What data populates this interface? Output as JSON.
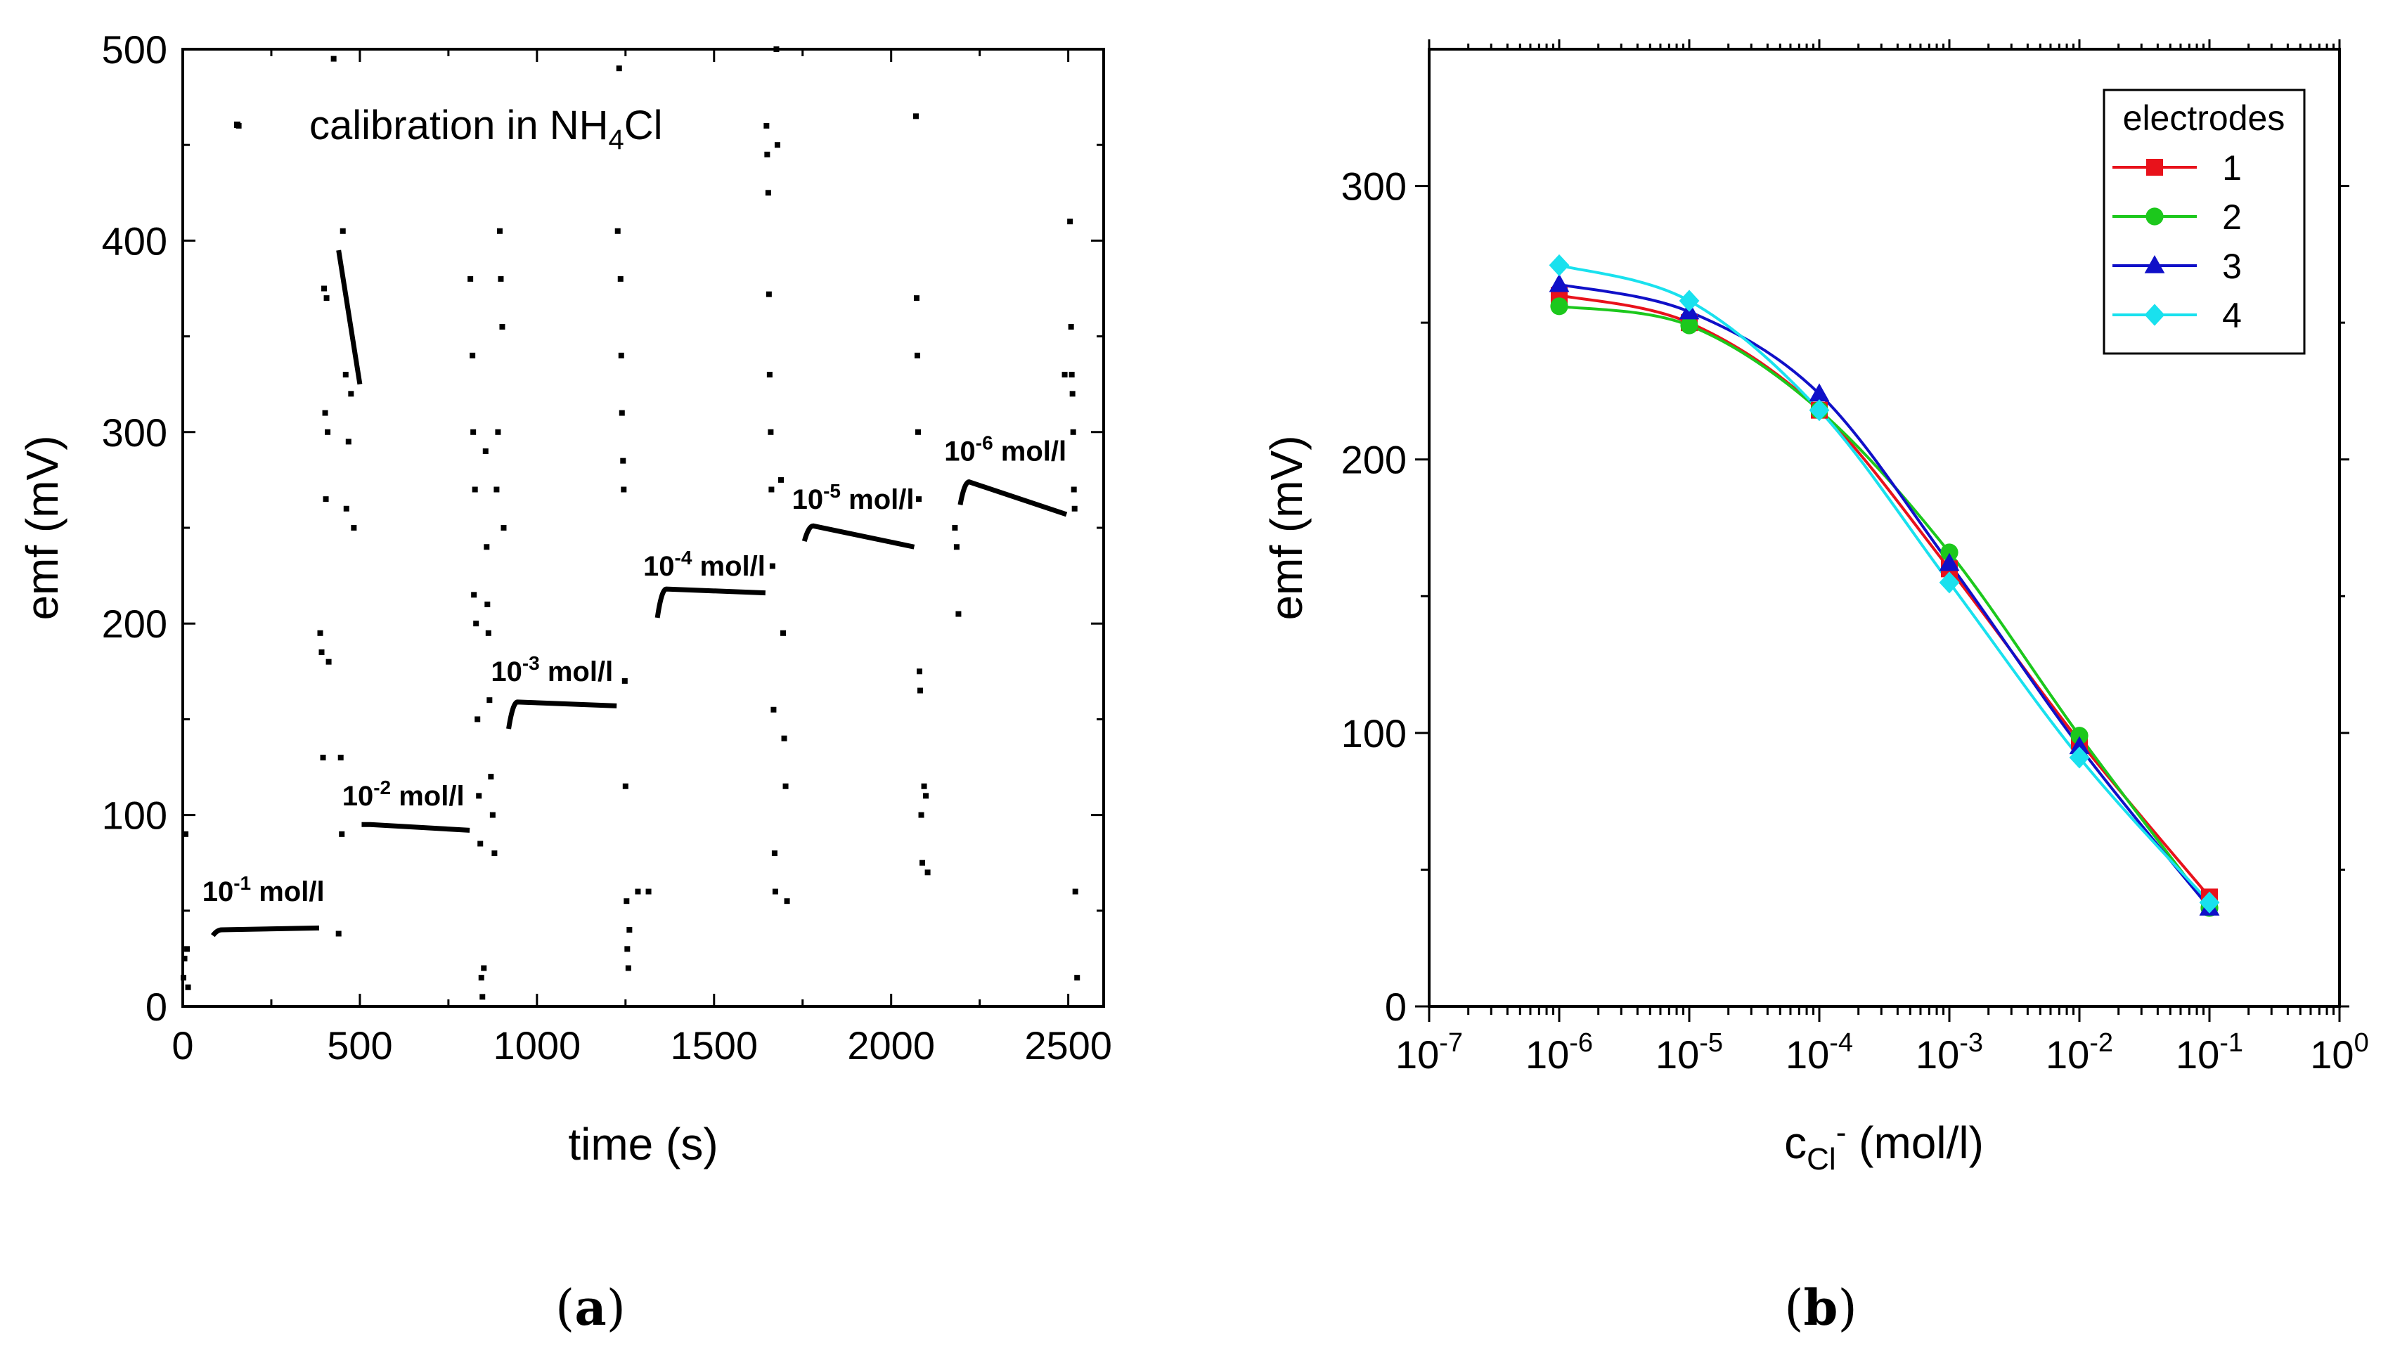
{
  "chart_data": [
    {
      "type": "scatter",
      "panel": "(a)",
      "panel_open": "(",
      "panel_letter": "a",
      "panel_close": ")",
      "xlabel": "time (s)",
      "ylabel": "emf (mV)",
      "xlim": [
        0,
        2600
      ],
      "ylim": [
        0,
        500
      ],
      "xticks": [
        "0",
        "500",
        "1000",
        "1500",
        "2000",
        "2500"
      ],
      "xtick_values": [
        0,
        500,
        1000,
        1500,
        2000,
        2500
      ],
      "yticks": [
        "0",
        "100",
        "200",
        "300",
        "400",
        "500"
      ],
      "ytick_values": [
        0,
        100,
        200,
        300,
        400,
        500
      ],
      "legend": {
        "prefix": "calibration in NH",
        "sub": "4",
        "suffix": "Cl"
      },
      "step_labels": [
        {
          "base": "10",
          "exp": "-1",
          "unit": " mol/l",
          "x": 55,
          "y": 55
        },
        {
          "base": "10",
          "exp": "-2",
          "unit": " mol/l",
          "x": 450,
          "y": 105
        },
        {
          "base": "10",
          "exp": "-3",
          "unit": " mol/l",
          "x": 870,
          "y": 170
        },
        {
          "base": "10",
          "exp": "-4",
          "unit": " mol/l",
          "x": 1300,
          "y": 225
        },
        {
          "base": "10",
          "exp": "-5",
          "unit": " mol/l",
          "x": 1720,
          "y": 260
        },
        {
          "base": "10",
          "exp": "-6",
          "unit": " mol/l",
          "x": 2150,
          "y": 285
        }
      ],
      "plateaus": [
        {
          "x_start": 85,
          "x_end": 385,
          "y_start": 37,
          "y_peak": 40,
          "y_end": 41
        },
        {
          "x_start": 505,
          "x_end": 810,
          "y_start": 95,
          "y_peak": 95,
          "y_end": 92
        },
        {
          "x_start": 920,
          "x_end": 1225,
          "y_start": 145,
          "y_peak": 159,
          "y_end": 157
        },
        {
          "x_start": 1340,
          "x_end": 1645,
          "y_start": 203,
          "y_peak": 218,
          "y_end": 216
        },
        {
          "x_start": 1755,
          "x_end": 2065,
          "y_start": 243,
          "y_peak": 251,
          "y_end": 240
        },
        {
          "x_start": 2195,
          "x_end": 2495,
          "y_start": 262,
          "y_peak": 274,
          "y_end": 257
        }
      ],
      "transient_segment": {
        "x_start": 440,
        "x_end": 500,
        "y_start": 395,
        "y_end": 325
      },
      "scattered_points": [
        [
          2,
          15
        ],
        [
          5,
          25
        ],
        [
          8,
          90
        ],
        [
          12,
          30
        ],
        [
          15,
          10
        ],
        [
          158,
          460
        ],
        [
          388,
          195
        ],
        [
          392,
          185
        ],
        [
          396,
          130
        ],
        [
          399,
          375
        ],
        [
          402,
          310
        ],
        [
          404,
          265
        ],
        [
          406,
          370
        ],
        [
          409,
          300
        ],
        [
          412,
          180
        ],
        [
          426,
          495
        ],
        [
          440,
          38
        ],
        [
          446,
          130
        ],
        [
          449,
          90
        ],
        [
          452,
          405
        ],
        [
          460,
          330
        ],
        [
          462,
          260
        ],
        [
          468,
          295
        ],
        [
          475,
          320
        ],
        [
          483,
          250
        ],
        [
          812,
          380
        ],
        [
          818,
          340
        ],
        [
          820,
          300
        ],
        [
          822,
          215
        ],
        [
          825,
          270
        ],
        [
          828,
          200
        ],
        [
          832,
          150
        ],
        [
          836,
          110
        ],
        [
          840,
          85
        ],
        [
          843,
          15
        ],
        [
          846,
          5
        ],
        [
          850,
          20
        ],
        [
          855,
          290
        ],
        [
          858,
          240
        ],
        [
          860,
          210
        ],
        [
          863,
          195
        ],
        [
          866,
          160
        ],
        [
          870,
          120
        ],
        [
          875,
          100
        ],
        [
          880,
          80
        ],
        [
          886,
          270
        ],
        [
          890,
          300
        ],
        [
          895,
          405
        ],
        [
          898,
          380
        ],
        [
          902,
          355
        ],
        [
          906,
          250
        ],
        [
          1228,
          405
        ],
        [
          1232,
          490
        ],
        [
          1236,
          380
        ],
        [
          1238,
          340
        ],
        [
          1240,
          310
        ],
        [
          1243,
          285
        ],
        [
          1245,
          270
        ],
        [
          1248,
          170
        ],
        [
          1250,
          115
        ],
        [
          1253,
          55
        ],
        [
          1255,
          30
        ],
        [
          1258,
          20
        ],
        [
          1261,
          40
        ],
        [
          1285,
          60
        ],
        [
          1315,
          60
        ],
        [
          1648,
          460
        ],
        [
          1650,
          445
        ],
        [
          1653,
          425
        ],
        [
          1655,
          372
        ],
        [
          1657,
          330
        ],
        [
          1660,
          300
        ],
        [
          1662,
          270
        ],
        [
          1665,
          230
        ],
        [
          1668,
          155
        ],
        [
          1671,
          80
        ],
        [
          1673,
          60
        ],
        [
          1676,
          500
        ],
        [
          1679,
          450
        ],
        [
          1689,
          275
        ],
        [
          1695,
          195
        ],
        [
          1698,
          140
        ],
        [
          1702,
          115
        ],
        [
          1706,
          55
        ],
        [
          2070,
          465
        ],
        [
          2072,
          370
        ],
        [
          2074,
          340
        ],
        [
          2076,
          300
        ],
        [
          2078,
          265
        ],
        [
          2080,
          175
        ],
        [
          2082,
          165
        ],
        [
          2085,
          100
        ],
        [
          2088,
          75
        ],
        [
          2093,
          115
        ],
        [
          2098,
          110
        ],
        [
          2103,
          70
        ],
        [
          2505,
          410
        ],
        [
          2508,
          355
        ],
        [
          2510,
          330
        ],
        [
          2512,
          320
        ],
        [
          2514,
          300
        ],
        [
          2516,
          270
        ],
        [
          2518,
          260
        ],
        [
          2520,
          60
        ],
        [
          2525,
          15
        ],
        [
          2490,
          330
        ],
        [
          2180,
          250
        ],
        [
          2185,
          240
        ],
        [
          2190,
          205
        ]
      ]
    },
    {
      "type": "line",
      "panel": "(b)",
      "panel_open": "(",
      "panel_letter": "b",
      "panel_close": ")",
      "xlabel": {
        "prefix": "c",
        "sub": "Cl",
        "sup": "-",
        "suffix": " (mol/l)"
      },
      "ylabel": "emf (mV)",
      "xscale": "log",
      "xlim_log10": [
        -7,
        0
      ],
      "ylim": [
        0,
        350
      ],
      "xticks": [
        {
          "base": "10",
          "exp": "-7",
          "log": -7
        },
        {
          "base": "10",
          "exp": "-6",
          "log": -6
        },
        {
          "base": "10",
          "exp": "-5",
          "log": -5
        },
        {
          "base": "10",
          "exp": "-4",
          "log": -4
        },
        {
          "base": "10",
          "exp": "-3",
          "log": -3
        },
        {
          "base": "10",
          "exp": "-2",
          "log": -2
        },
        {
          "base": "10",
          "exp": "-1",
          "log": -1
        },
        {
          "base": "10",
          "exp": "0",
          "log": 0
        }
      ],
      "yticks": [
        "0",
        "100",
        "200",
        "300"
      ],
      "ytick_values": [
        0,
        100,
        200,
        300
      ],
      "x": [
        1e-06,
        1e-05,
        0.0001,
        0.001,
        0.01,
        0.1
      ],
      "legend": {
        "title": "electrodes",
        "position": "top-right"
      },
      "series": [
        {
          "name": "1",
          "color": "#e8121b",
          "marker": "square",
          "values": [
            260,
            250,
            218,
            160,
            97,
            40
          ]
        },
        {
          "name": "2",
          "color": "#1cc81c",
          "marker": "circle",
          "values": [
            256,
            249,
            218,
            166,
            99,
            36
          ]
        },
        {
          "name": "3",
          "color": "#1010c8",
          "marker": "triangle",
          "values": [
            264,
            254,
            224,
            162,
            95,
            36
          ]
        },
        {
          "name": "4",
          "color": "#19e1ee",
          "marker": "diamond",
          "values": [
            271,
            258,
            218,
            155,
            91,
            38
          ]
        }
      ]
    }
  ]
}
